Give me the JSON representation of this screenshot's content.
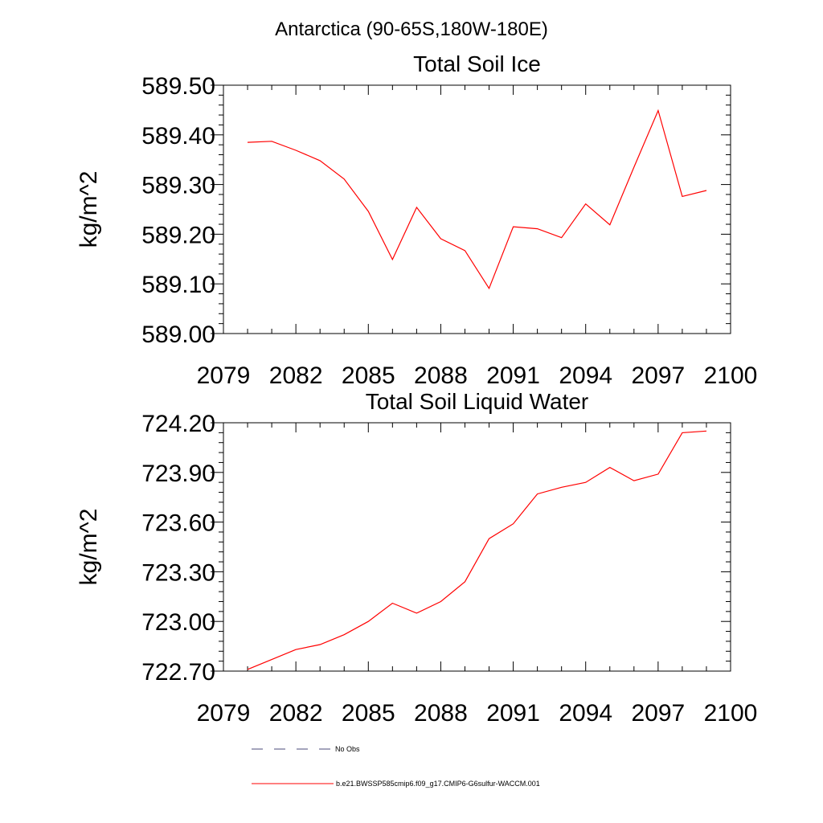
{
  "header": {
    "region_title": "Antarctica (90-65S,180W-180E)"
  },
  "chart_data": [
    {
      "type": "line",
      "title": "Total Soil Ice",
      "ylabel": "kg/m^2",
      "xlabel": "",
      "xlim": [
        2079,
        2100
      ],
      "ylim": [
        589.0,
        589.5
      ],
      "x_ticks": [
        "2079",
        "2082",
        "2085",
        "2088",
        "2091",
        "2094",
        "2097",
        "2100"
      ],
      "y_ticks": [
        "589.00",
        "589.10",
        "589.20",
        "589.30",
        "589.40",
        "589.50"
      ],
      "series": [
        {
          "name": "b.e21.BWSSP585cmip6.f09_g17.CMIP6-G6sulfur-WACCM.001",
          "color": "#ff0000",
          "x": [
            2080,
            2081,
            2082,
            2083,
            2084,
            2085,
            2086,
            2087,
            2088,
            2089,
            2090,
            2091,
            2092,
            2093,
            2094,
            2095,
            2096,
            2097,
            2098,
            2099
          ],
          "y": [
            589.385,
            589.387,
            589.369,
            589.348,
            589.311,
            589.246,
            589.149,
            589.254,
            589.191,
            589.167,
            589.091,
            589.215,
            589.211,
            589.193,
            589.261,
            589.219,
            589.335,
            589.449,
            589.276,
            589.288
          ]
        }
      ]
    },
    {
      "type": "line",
      "title": "Total Soil Liquid Water",
      "ylabel": "kg/m^2",
      "xlabel": "",
      "xlim": [
        2079,
        2100
      ],
      "ylim": [
        722.7,
        724.2
      ],
      "x_ticks": [
        "2079",
        "2082",
        "2085",
        "2088",
        "2091",
        "2094",
        "2097",
        "2100"
      ],
      "y_ticks": [
        "722.70",
        "723.00",
        "723.30",
        "723.60",
        "723.90",
        "724.20"
      ],
      "series": [
        {
          "name": "b.e21.BWSSP585cmip6.f09_g17.CMIP6-G6sulfur-WACCM.001",
          "color": "#ff0000",
          "x": [
            2080,
            2081,
            2082,
            2083,
            2084,
            2085,
            2086,
            2087,
            2088,
            2089,
            2090,
            2091,
            2092,
            2093,
            2094,
            2095,
            2096,
            2097,
            2098,
            2099
          ],
          "y": [
            722.71,
            722.77,
            722.83,
            722.86,
            722.92,
            723.0,
            723.11,
            723.05,
            723.12,
            723.24,
            723.5,
            723.59,
            723.77,
            723.81,
            723.84,
            723.93,
            723.85,
            723.89,
            724.14,
            724.15
          ]
        }
      ]
    }
  ],
  "legend": {
    "placement": "bottom",
    "entries": [
      {
        "label": "No Obs",
        "style": "dashed",
        "color": "#4a4a7a"
      },
      {
        "label": "b.e21.BWSSP585cmip6.f09_g17.CMIP6-G6sulfur-WACCM.001",
        "style": "solid",
        "color": "#ff0000"
      }
    ]
  }
}
